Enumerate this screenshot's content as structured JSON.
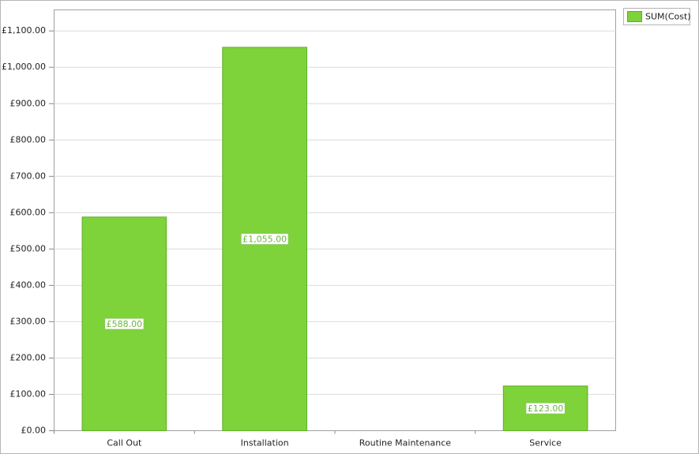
{
  "chart_data": {
    "type": "bar",
    "categories": [
      "Call Out",
      "Installation",
      "Routine Maintenance",
      "Service"
    ],
    "series": [
      {
        "name": "SUM(Cost)",
        "color": "#7ed23a",
        "values": [
          588,
          1055,
          null,
          123
        ],
        "value_labels": [
          "£588.00",
          "£1,055.00",
          null,
          "£123.00"
        ]
      }
    ],
    "ylim": [
      0,
      1158
    ],
    "yticks": [
      {
        "value": 0,
        "label": "£0.00"
      },
      {
        "value": 100,
        "label": "£100.00"
      },
      {
        "value": 200,
        "label": "£200.00"
      },
      {
        "value": 300,
        "label": "£300.00"
      },
      {
        "value": 400,
        "label": "£400.00"
      },
      {
        "value": 500,
        "label": "£500.00"
      },
      {
        "value": 600,
        "label": "£600.00"
      },
      {
        "value": 700,
        "label": "£700.00"
      },
      {
        "value": 800,
        "label": "£800.00"
      },
      {
        "value": 900,
        "label": "£900.00"
      },
      {
        "value": 1000,
        "label": "£1,000.00"
      },
      {
        "value": 1100,
        "label": "£1,100.00"
      }
    ],
    "grid": true,
    "legend": "top-right"
  }
}
